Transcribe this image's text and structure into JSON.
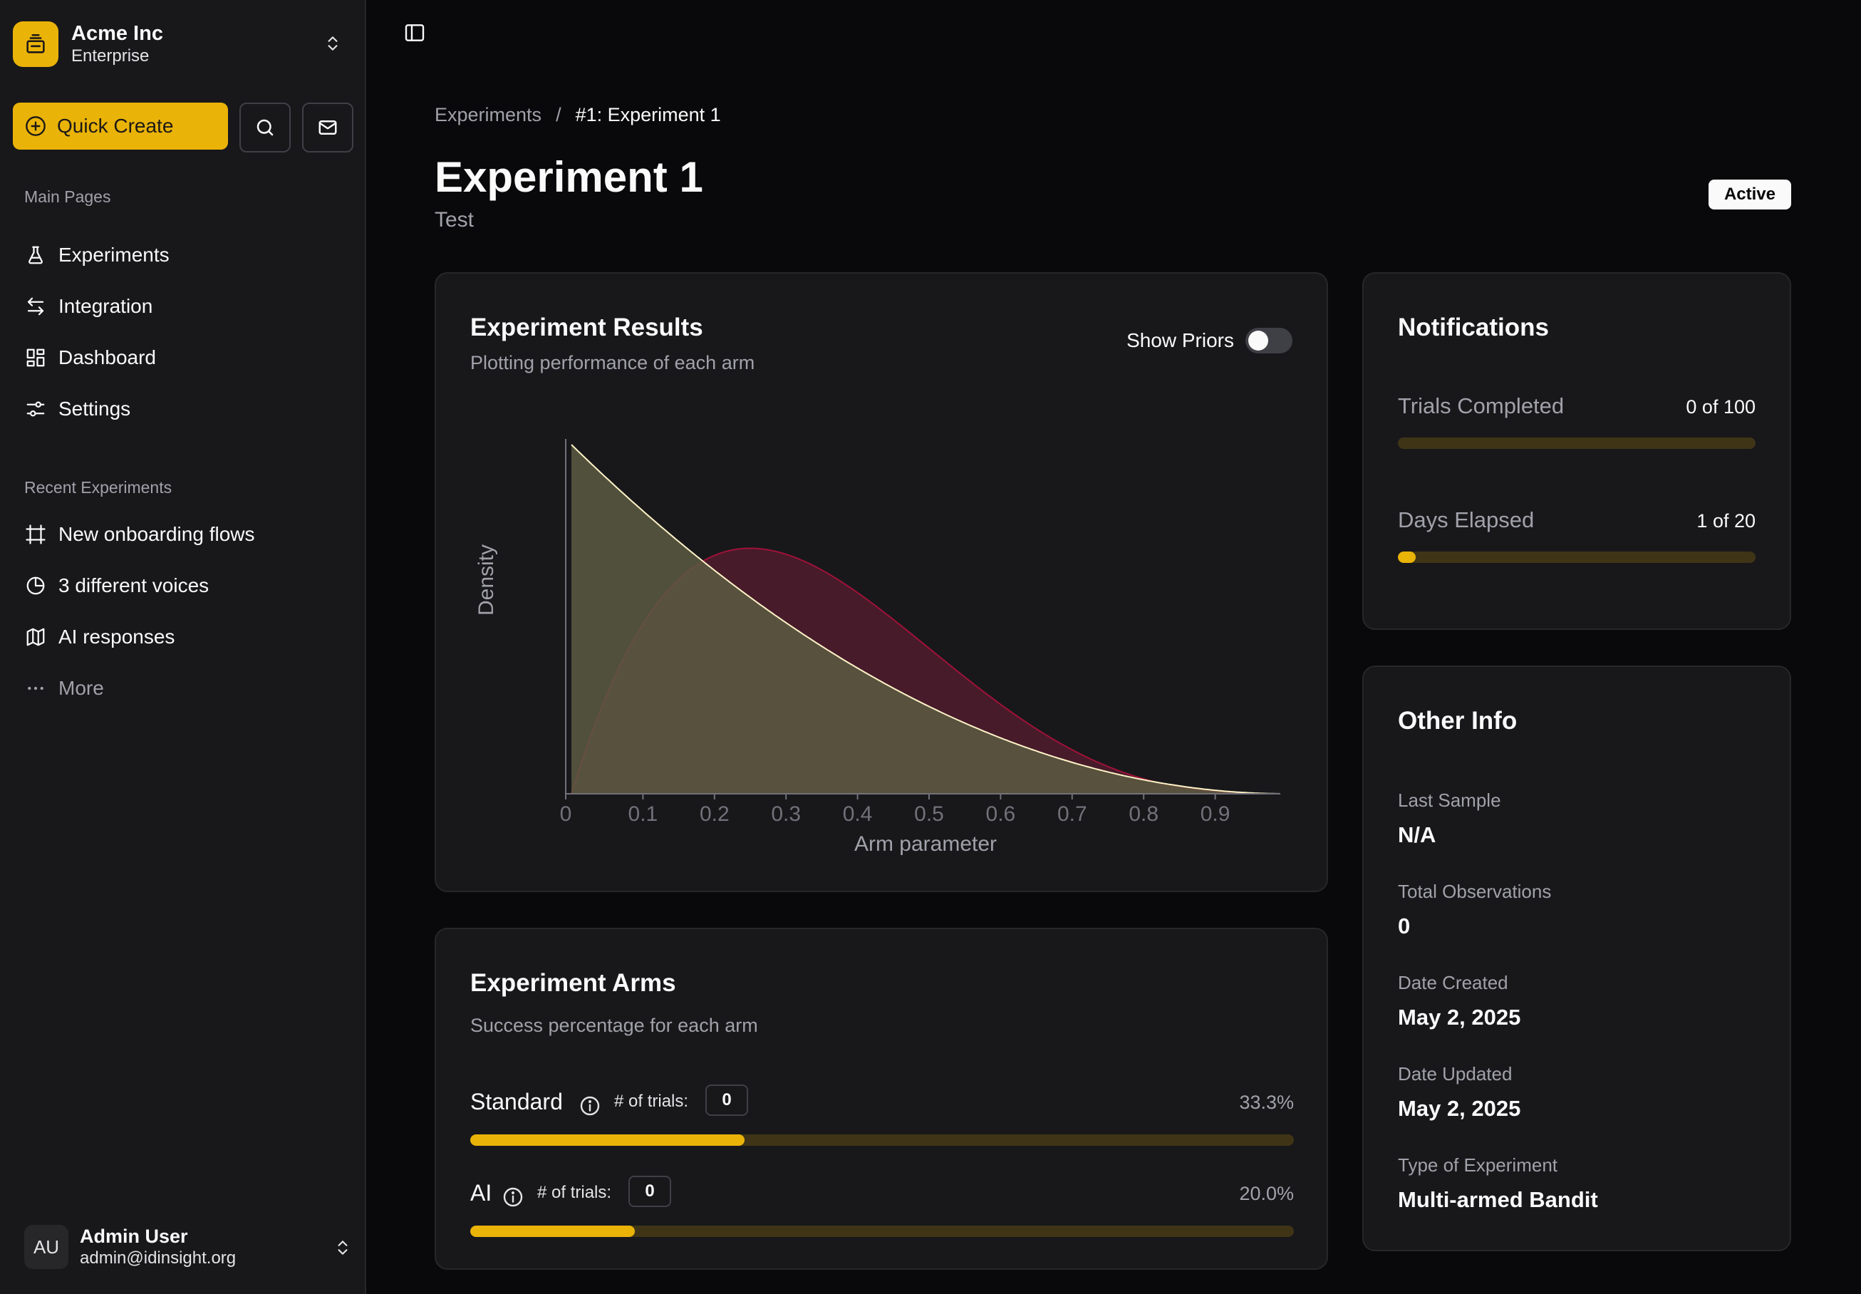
{
  "team": {
    "name": "Acme Inc",
    "plan": "Enterprise"
  },
  "sidebar": {
    "quick_create": "Quick Create",
    "main_pages_label": "Main Pages",
    "main_pages": [
      {
        "label": "Experiments",
        "icon": "flask-icon"
      },
      {
        "label": "Integration",
        "icon": "arrows-exchange-icon"
      },
      {
        "label": "Dashboard",
        "icon": "dashboard-grid-icon"
      },
      {
        "label": "Settings",
        "icon": "sliders-icon"
      }
    ],
    "recent_label": "Recent Experiments",
    "recent": [
      {
        "label": "New onboarding flows",
        "icon": "frame-icon"
      },
      {
        "label": "3 different voices",
        "icon": "pie-chart-icon"
      },
      {
        "label": "AI responses",
        "icon": "map-icon"
      }
    ],
    "more_label": "More"
  },
  "user": {
    "initials": "AU",
    "name": "Admin User",
    "email": "admin@idinsight.org"
  },
  "breadcrumb": {
    "parent": "Experiments",
    "separator": "/",
    "current": "#1: Experiment 1"
  },
  "page": {
    "title": "Experiment 1",
    "subtitle": "Test",
    "status": "Active"
  },
  "results_card": {
    "title": "Experiment Results",
    "description": "Plotting performance of each arm",
    "show_priors_label": "Show Priors",
    "show_priors": false
  },
  "chart_data": {
    "type": "area",
    "xlabel": "Arm parameter",
    "ylabel": "Density",
    "xlim": [
      0,
      1
    ],
    "x_ticks": [
      "0",
      "0.1",
      "0.2",
      "0.3",
      "0.4",
      "0.5",
      "0.6",
      "0.7",
      "0.8",
      "0.9"
    ],
    "series": [
      {
        "distribution": "Beta(1, 3)",
        "alpha": 1,
        "beta": 3,
        "color": "#fef3c7",
        "fill": "#5c5a42"
      },
      {
        "distribution": "Beta(2, 4)",
        "alpha": 2,
        "beta": 4,
        "color": "#9f1239",
        "fill": "#4a1b2b"
      }
    ]
  },
  "notifications": {
    "title": "Notifications",
    "items": [
      {
        "label": "Trials Completed",
        "value": "0 of 100",
        "progress": 0
      },
      {
        "label": "Days Elapsed",
        "value": "1 of 20",
        "progress": 0.05
      }
    ]
  },
  "other_info": {
    "title": "Other Info",
    "items": [
      {
        "label": "Last Sample",
        "value": "N/A"
      },
      {
        "label": "Total Observations",
        "value": "0"
      },
      {
        "label": "Date Created",
        "value": "May 2, 2025"
      },
      {
        "label": "Date Updated",
        "value": "May 2, 2025"
      },
      {
        "label": "Type of Experiment",
        "value": "Multi-armed Bandit"
      }
    ]
  },
  "arms_card": {
    "title": "Experiment Arms",
    "description": "Success percentage for each arm",
    "trials_label": "# of trials:",
    "arms": [
      {
        "name": "Standard",
        "trials": "0",
        "percent_label": "33.3%",
        "percent": 0.333
      },
      {
        "name": "AI",
        "trials": "0",
        "percent_label": "20.0%",
        "percent": 0.2
      }
    ]
  },
  "colors": {
    "accent": "#eab308",
    "track": "#3f3516",
    "background": "#09090b",
    "card": "#18181b"
  }
}
